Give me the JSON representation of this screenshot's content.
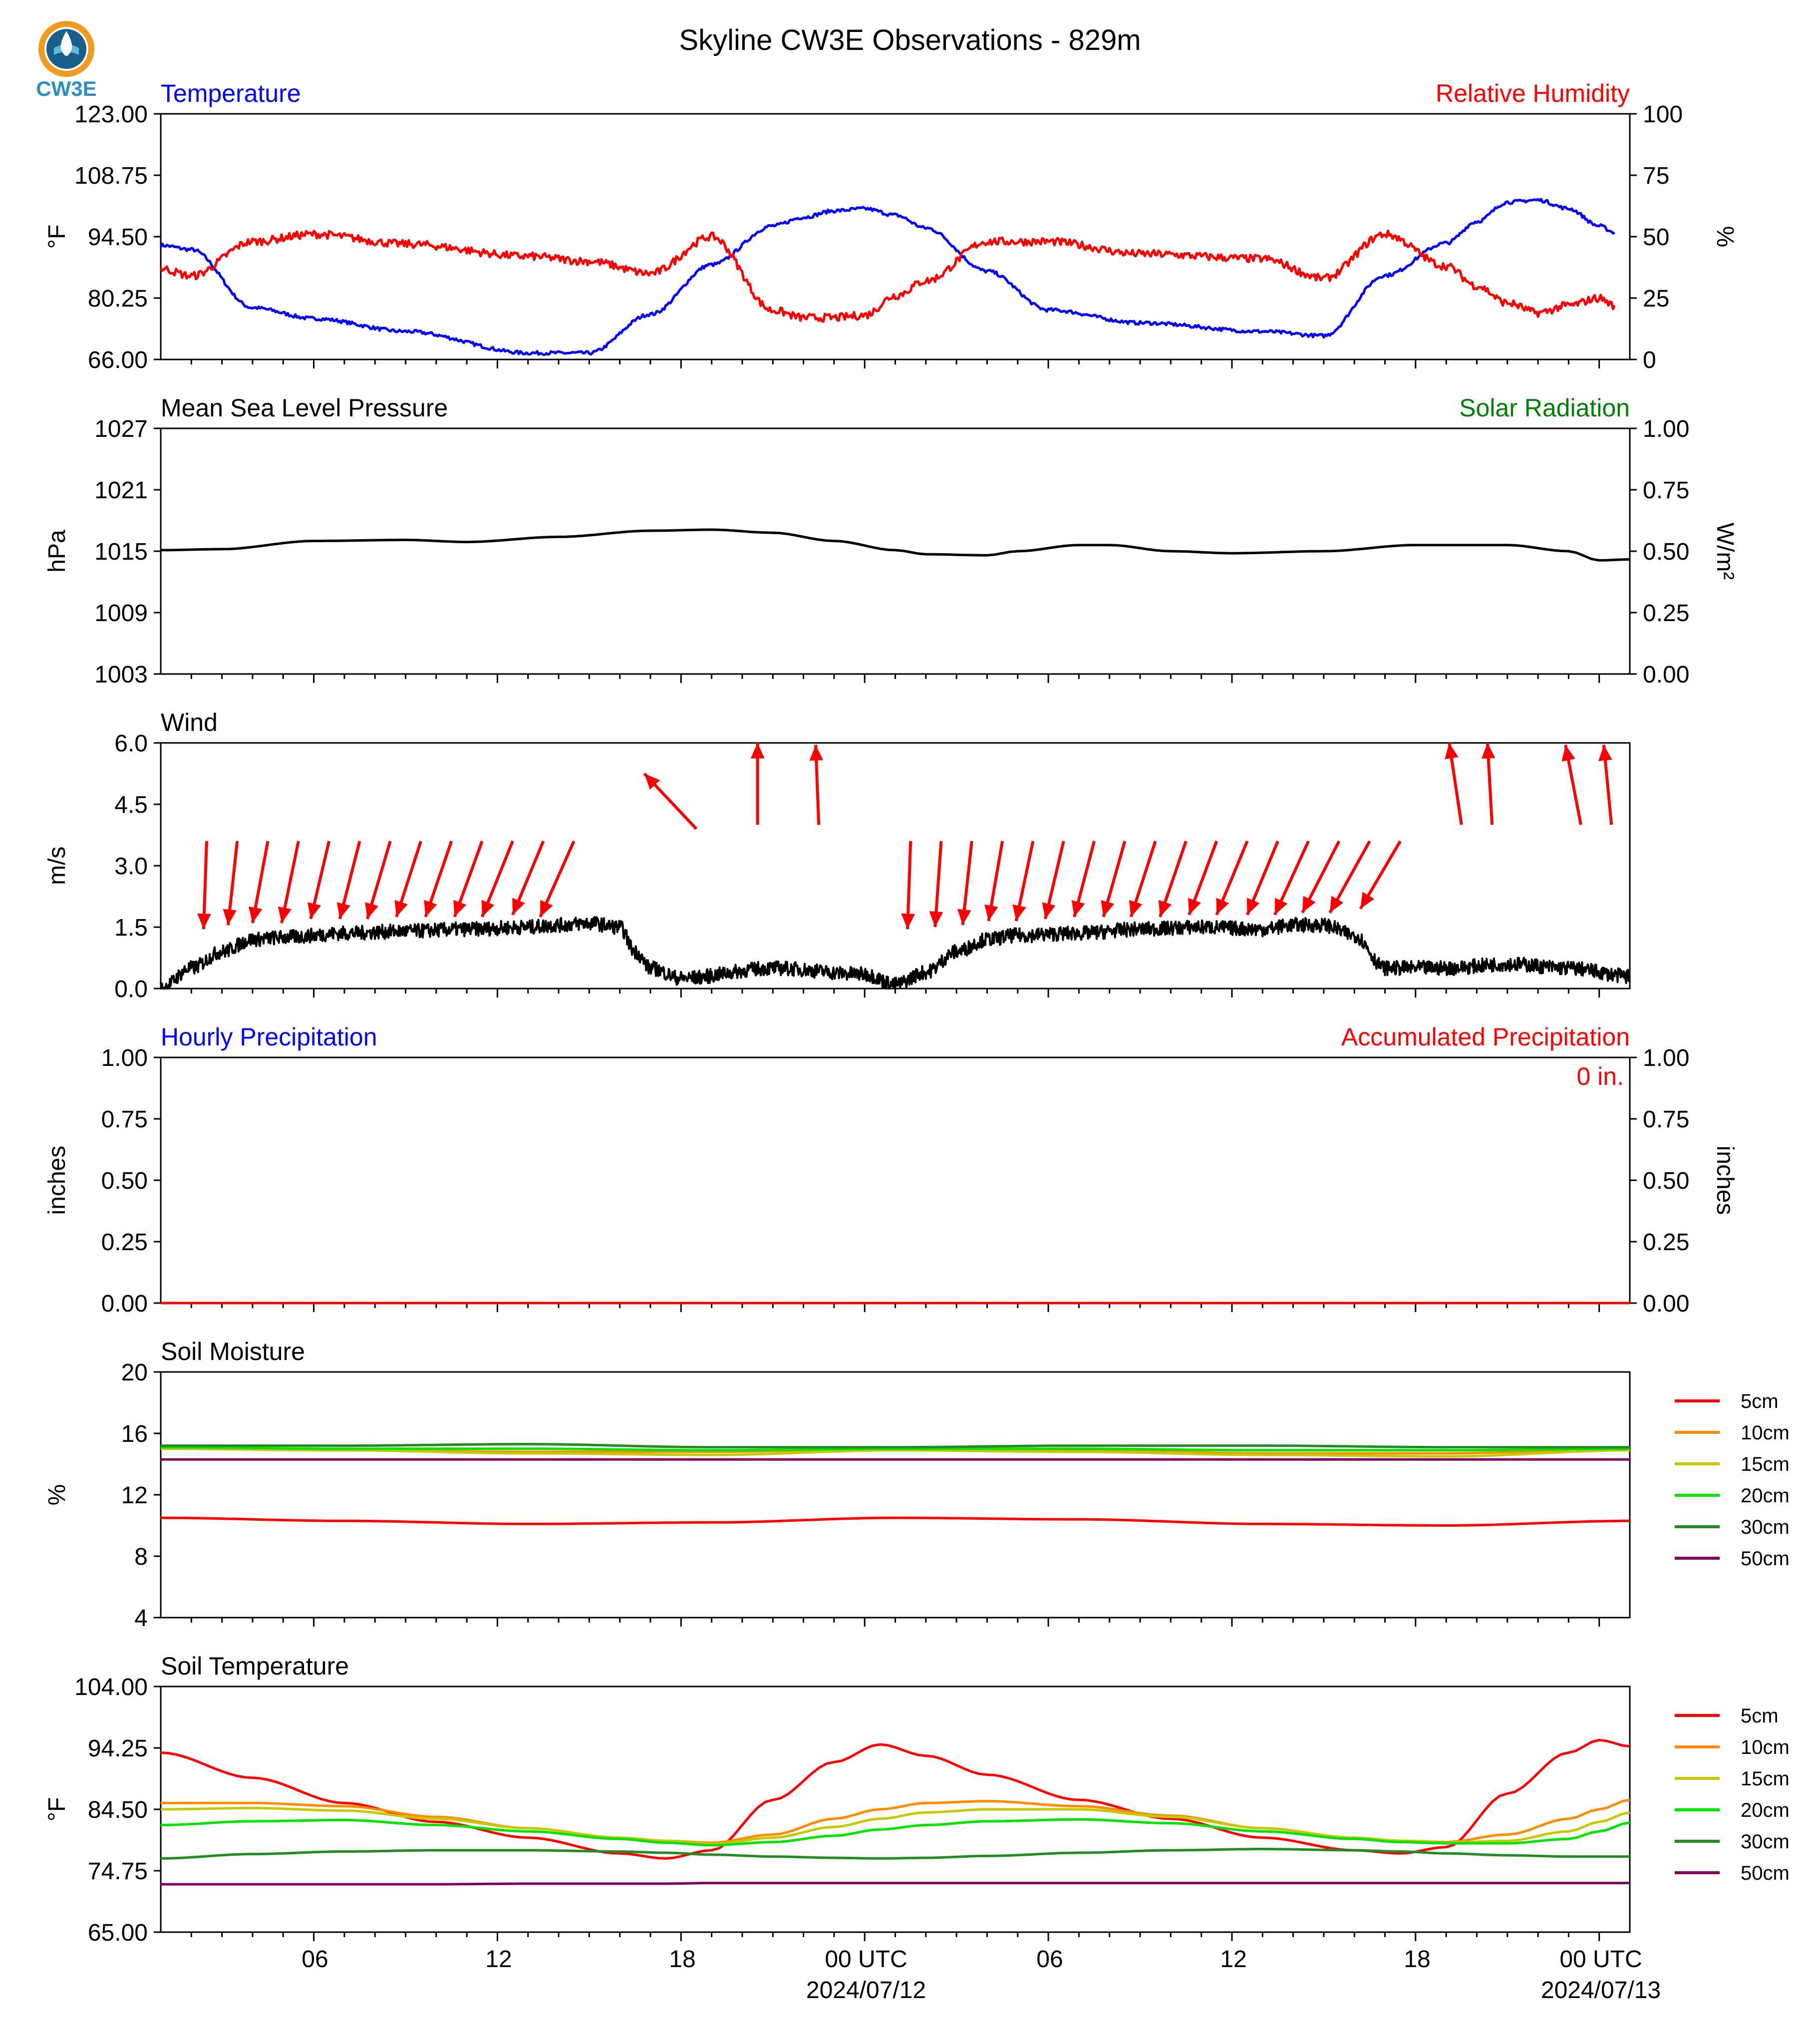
{
  "title": "Skyline CW3E Observations - 829m",
  "logo": {
    "text": "CW3E",
    "colors": {
      "drop": "#2a8fc0",
      "wave": "#1a5f8a",
      "ring": "#f29a1d"
    }
  },
  "x_axis": {
    "tick_labels": [
      "06",
      "12",
      "18",
      "00 UTC",
      "06",
      "12",
      "18",
      "00 UTC"
    ],
    "date_labels": [
      "2024/07/12",
      "2024/07/13"
    ]
  },
  "chart_data": [
    {
      "id": "temperature",
      "type": "line",
      "title_left": "Temperature",
      "title_right": "Relative Humidity",
      "title_left_color": "#0000ff",
      "title_right_color": "#ff0000",
      "ylabel": "°F",
      "ylabel_right": "%",
      "yticks": [
        "66.00",
        "80.25",
        "94.50",
        "108.75",
        "123.00"
      ],
      "yticks_right": [
        "0",
        "25",
        "50",
        "75",
        "100"
      ],
      "ylim": [
        66,
        123
      ],
      "ylim_right": [
        0,
        100
      ],
      "x_hours": [
        0,
        1,
        3,
        5,
        8,
        12,
        14,
        16,
        18,
        20,
        21,
        22,
        23,
        24,
        25,
        27,
        29,
        32,
        36,
        38,
        40,
        42,
        43,
        44,
        45,
        46,
        47,
        47.5
      ],
      "series": [
        {
          "axis": "left",
          "color": "#0000ff",
          "values": [
            92.5,
            91.5,
            78.0,
            75.5,
            72.5,
            67.5,
            67.5,
            76.5,
            88.0,
            97.0,
            99.0,
            100.5,
            101.0,
            99.5,
            96.5,
            86.5,
            77.5,
            74.5,
            72.5,
            71.5,
            85.5,
            93.0,
            98.0,
            102.5,
            103.0,
            101.0,
            97.0,
            95.5
          ]
        },
        {
          "axis": "right",
          "color": "#ff0000",
          "values": [
            37,
            34,
            48,
            51,
            47,
            42,
            40,
            35,
            50,
            20,
            17,
            17,
            18,
            26,
            32,
            48,
            48,
            43,
            41,
            33,
            51,
            38,
            30,
            23,
            19,
            22,
            25,
            22
          ]
        }
      ]
    },
    {
      "id": "pressure",
      "type": "line",
      "title_left": "Mean Sea Level Pressure",
      "title_right": "Solar Radiation",
      "title_left_color": "#000000",
      "title_right_color": "#008000",
      "ylabel": "hPa",
      "ylabel_right": "W/m²",
      "yticks": [
        "1003",
        "1009",
        "1015",
        "1021",
        "1027"
      ],
      "yticks_right": [
        "0.00",
        "0.25",
        "0.50",
        "0.75",
        "1.00"
      ],
      "ylim": [
        1003,
        1027
      ],
      "ylim_right": [
        0,
        1
      ],
      "x_hours": [
        0,
        2,
        5,
        8,
        10,
        13,
        16,
        18,
        20,
        22,
        24,
        25,
        27,
        28,
        30,
        31,
        33,
        35,
        38,
        41,
        44,
        46,
        47,
        48
      ],
      "series": [
        {
          "axis": "left",
          "color": "#000000",
          "values": [
            1015.1,
            1015.2,
            1016.0,
            1016.1,
            1015.9,
            1016.4,
            1017.0,
            1017.1,
            1016.8,
            1016.0,
            1015.1,
            1014.7,
            1014.6,
            1015.0,
            1015.6,
            1015.6,
            1015.0,
            1014.8,
            1015.0,
            1015.6,
            1015.6,
            1015.0,
            1014.1,
            1014.2
          ]
        }
      ]
    },
    {
      "id": "wind",
      "type": "line",
      "title_left": "Wind",
      "title_left_color": "#000000",
      "ylabel": "m/s",
      "yticks": [
        "0.0",
        "1.5",
        "3.0",
        "4.5",
        "6.0"
      ],
      "ylim": [
        0,
        6
      ],
      "x_hours": [
        0,
        1,
        2,
        3,
        4,
        6,
        8,
        10,
        12,
        13,
        14,
        15,
        15.5,
        16,
        17,
        20,
        23,
        24,
        25,
        26,
        27,
        28,
        30,
        32,
        34,
        36,
        37,
        38,
        39,
        40,
        42,
        44,
        46,
        48
      ],
      "series": [
        {
          "axis": "left",
          "color": "#000000",
          "values": [
            0.0,
            0.5,
            0.9,
            1.2,
            1.25,
            1.35,
            1.4,
            1.45,
            1.5,
            1.55,
            1.6,
            1.5,
            0.9,
            0.5,
            0.25,
            0.5,
            0.35,
            0.1,
            0.4,
            0.9,
            1.2,
            1.3,
            1.35,
            1.45,
            1.5,
            1.45,
            1.55,
            1.55,
            1.3,
            0.5,
            0.5,
            0.6,
            0.5,
            0.3
          ]
        }
      ],
      "barbs": {
        "color": "#ff0000",
        "x_hours": [
          1.5,
          2.5,
          3.5,
          4.5,
          5.5,
          6.5,
          7.5,
          8.5,
          9.5,
          10.5,
          11.5,
          12.5,
          13.5,
          17.5,
          19.5,
          21.5,
          24.5,
          25.5,
          26.5,
          27.5,
          28.5,
          29.5,
          30.5,
          31.5,
          32.5,
          33.5,
          34.5,
          35.5,
          36.5,
          37.5,
          38.5,
          39.5,
          40.5,
          42.5,
          43.5
        ],
        "base_level": [
          3.6,
          3.6,
          3.6,
          3.6,
          3.6,
          3.6,
          3.6,
          3.6,
          3.6,
          3.6,
          3.6,
          3.6,
          3.6,
          3.9,
          4.0,
          4.0,
          3.6,
          3.6,
          3.6,
          3.6,
          3.6,
          3.6,
          3.6,
          3.6,
          3.6,
          3.6,
          3.6,
          3.6,
          3.6,
          3.6,
          3.6,
          3.6,
          3.6,
          4.0,
          4.0
        ],
        "dx_hours": [
          -0.1,
          -0.3,
          -0.5,
          -0.55,
          -0.6,
          -0.65,
          -0.75,
          -0.8,
          -0.85,
          -0.9,
          -1.0,
          -1.0,
          -1.1,
          -1.7,
          0.0,
          -0.1,
          -0.1,
          -0.2,
          -0.3,
          -0.45,
          -0.55,
          -0.6,
          -0.65,
          -0.7,
          -0.8,
          -0.85,
          -0.9,
          -1.0,
          -1.0,
          -1.1,
          -1.2,
          -1.3,
          -1.3,
          -0.4,
          -0.15
        ],
        "dy": [
          -2.15,
          -2.05,
          -2.0,
          -2.0,
          -1.9,
          -1.9,
          -1.9,
          -1.85,
          -1.85,
          -1.85,
          -1.85,
          -1.8,
          -1.85,
          1.35,
          2.0,
          1.95,
          -2.15,
          -2.1,
          -2.05,
          -1.95,
          -1.95,
          -1.9,
          -1.85,
          -1.85,
          -1.85,
          -1.85,
          -1.8,
          -1.8,
          -1.8,
          -1.8,
          -1.75,
          -1.75,
          -1.65,
          2.0,
          2.0
        ]
      },
      "barbs_extra": {
        "x_hours": [
          46.4,
          47.4
        ],
        "base_level": [
          4.0,
          4.0
        ],
        "dx_hours": [
          -0.5,
          -0.25
        ],
        "dy": [
          1.95,
          1.95
        ]
      }
    },
    {
      "id": "precipitation",
      "type": "line",
      "title_left": "Hourly Precipitation",
      "title_right": "Accumulated Precipitation",
      "title_left_color": "#0000ff",
      "title_right_color": "#ff0000",
      "annotation": "0 in.",
      "ylabel": "inches",
      "ylabel_right": "inches",
      "yticks": [
        "0.00",
        "0.25",
        "0.50",
        "0.75",
        "1.00"
      ],
      "yticks_right": [
        "0.00",
        "0.25",
        "0.50",
        "0.75",
        "1.00"
      ],
      "ylim": [
        0,
        1
      ],
      "ylim_right": [
        0,
        1
      ],
      "x_hours": [
        0,
        48
      ],
      "series": [
        {
          "axis": "right",
          "color": "#ff0000",
          "values": [
            0,
            0
          ]
        }
      ]
    },
    {
      "id": "soil_moisture",
      "type": "line",
      "title_left": "Soil Moisture",
      "title_left_color": "#000000",
      "ylabel": "%",
      "yticks": [
        "4",
        "8",
        "12",
        "16",
        "20"
      ],
      "ylim": [
        4,
        20
      ],
      "x_hours": [
        0,
        6,
        12,
        18,
        24,
        30,
        36,
        42,
        48
      ],
      "series": [
        {
          "name": "5cm",
          "color": "#ff0000",
          "values": [
            10.5,
            10.3,
            10.1,
            10.2,
            10.5,
            10.4,
            10.1,
            10.0,
            10.3
          ]
        },
        {
          "name": "10cm",
          "color": "#ff8c00",
          "values": [
            15.0,
            14.9,
            14.8,
            14.8,
            15.0,
            14.9,
            14.7,
            14.7,
            15.0
          ]
        },
        {
          "name": "15cm",
          "color": "#c8c800",
          "values": [
            15.0,
            14.9,
            14.7,
            14.6,
            14.9,
            14.8,
            14.6,
            14.5,
            14.9
          ]
        },
        {
          "name": "20cm",
          "color": "#00e600",
          "values": [
            15.1,
            15.0,
            15.0,
            14.9,
            15.0,
            15.0,
            14.9,
            14.9,
            15.0
          ]
        },
        {
          "name": "30cm",
          "color": "#228b22",
          "values": [
            15.2,
            15.2,
            15.3,
            15.1,
            15.1,
            15.2,
            15.2,
            15.1,
            15.1
          ]
        },
        {
          "name": "50cm",
          "color": "#800060",
          "values": [
            14.3,
            14.3,
            14.3,
            14.3,
            14.3,
            14.3,
            14.3,
            14.3,
            14.3
          ]
        }
      ]
    },
    {
      "id": "soil_temperature",
      "type": "line",
      "title_left": "Soil Temperature",
      "title_left_color": "#000000",
      "ylabel": "°F",
      "yticks": [
        "65.00",
        "74.75",
        "84.50",
        "94.25",
        "104.00"
      ],
      "ylim": [
        65,
        104
      ],
      "x_hours": [
        0,
        3,
        6,
        9,
        12,
        15,
        16.5,
        18,
        20,
        22,
        23.5,
        25,
        27,
        30,
        33,
        36,
        39,
        40.5,
        42,
        44,
        46,
        47,
        48
      ],
      "series": [
        {
          "name": "5cm",
          "color": "#ff0000",
          "values": [
            93.5,
            89.5,
            85.5,
            82.5,
            80.0,
            77.5,
            76.7,
            78.0,
            86.0,
            92.0,
            94.8,
            93.0,
            90.0,
            86.0,
            83.0,
            80.0,
            78.0,
            77.5,
            78.5,
            87.0,
            93.5,
            95.5,
            94.5
          ]
        },
        {
          "name": "10cm",
          "color": "#ff8c00",
          "values": [
            85.5,
            85.5,
            85.0,
            83.3,
            81.5,
            80.0,
            79.5,
            79.2,
            80.5,
            83.0,
            84.5,
            85.5,
            85.8,
            85.0,
            83.5,
            81.5,
            80.0,
            79.5,
            79.3,
            80.5,
            83.0,
            84.5,
            86.0
          ]
        },
        {
          "name": "15cm",
          "color": "#c8c800",
          "values": [
            84.5,
            84.7,
            84.3,
            83.0,
            81.5,
            80.0,
            79.5,
            79.0,
            80.0,
            81.7,
            83.0,
            84.0,
            84.5,
            84.5,
            83.3,
            81.5,
            80.0,
            79.5,
            79.2,
            79.5,
            81.0,
            82.5,
            84.0
          ]
        },
        {
          "name": "20cm",
          "color": "#00e600",
          "values": [
            82.0,
            82.6,
            82.8,
            82.0,
            81.0,
            79.8,
            79.2,
            78.8,
            79.3,
            80.3,
            81.3,
            82.0,
            82.6,
            82.9,
            82.3,
            81.0,
            79.8,
            79.3,
            79.1,
            79.1,
            79.8,
            81.0,
            82.4
          ]
        },
        {
          "name": "30cm",
          "color": "#228b22",
          "values": [
            76.7,
            77.4,
            77.8,
            78.0,
            78.0,
            77.8,
            77.6,
            77.3,
            77.0,
            76.8,
            76.7,
            76.8,
            77.1,
            77.6,
            78.0,
            78.2,
            78.0,
            77.8,
            77.5,
            77.2,
            77.0,
            77.0,
            77.0
          ]
        },
        {
          "name": "50cm",
          "color": "#800060",
          "values": [
            72.6,
            72.6,
            72.6,
            72.6,
            72.7,
            72.7,
            72.7,
            72.8,
            72.8,
            72.8,
            72.8,
            72.8,
            72.8,
            72.8,
            72.8,
            72.8,
            72.8,
            72.8,
            72.8,
            72.8,
            72.8,
            72.8,
            72.8
          ]
        }
      ]
    }
  ]
}
